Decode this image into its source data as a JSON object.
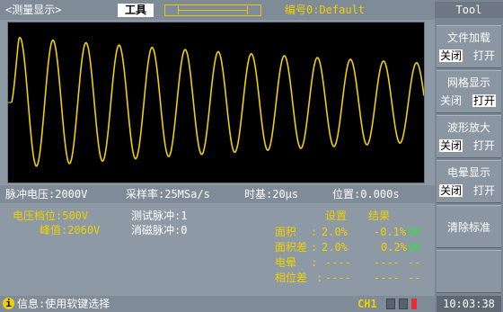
{
  "topbar": {
    "title": "<测量显示>",
    "tool_label": "工具",
    "code_label": "编号0:Default"
  },
  "scope": {
    "trace_color": "#f0d000",
    "background": "#000000"
  },
  "measure_row": {
    "pulse_voltage": "脉冲电压:2000V",
    "sample_rate": "采样率:25MSa/s",
    "timebase": "时基:20μs",
    "position": "位置:0.000s"
  },
  "info": {
    "voltage_range": "电压档位:500V",
    "peak": "峰值:2060V",
    "test_pulse": "测试脉冲:1",
    "demag_pulse": "消磁脉冲:0",
    "header_setting": "设置",
    "header_result": "结果",
    "rows": [
      {
        "label": "面积",
        "sep": ":",
        "setting": "2.0%",
        "result": "-0.1%",
        "status": "OK"
      },
      {
        "label": "面积差",
        "sep": ":",
        "setting": "2.0%",
        "result": "0.2%",
        "status": "OK"
      },
      {
        "label": "电晕",
        "sep": ":",
        "setting": "----",
        "result": "----",
        "status": "--"
      },
      {
        "label": "相位差",
        "sep": ":",
        "setting": "----",
        "result": "----",
        "status": "--"
      }
    ]
  },
  "status": {
    "info_icon": "info-icon",
    "message": "信息:使用软键选择",
    "channel": "CH1"
  },
  "right_panel": {
    "title": "Tool",
    "buttons": [
      {
        "label": "文件加载",
        "off": "关闭",
        "on": "打开",
        "selected": "off"
      },
      {
        "label": "网格显示",
        "off": "关闭",
        "on": "打开",
        "selected": "on"
      },
      {
        "label": "波形放大",
        "off": "关闭",
        "on": "打开",
        "selected": "off"
      },
      {
        "label": "电晕显示",
        "off": "关闭",
        "on": "打开",
        "selected": "off"
      },
      {
        "label": "清除标准"
      }
    ],
    "time": "10:03:38"
  }
}
